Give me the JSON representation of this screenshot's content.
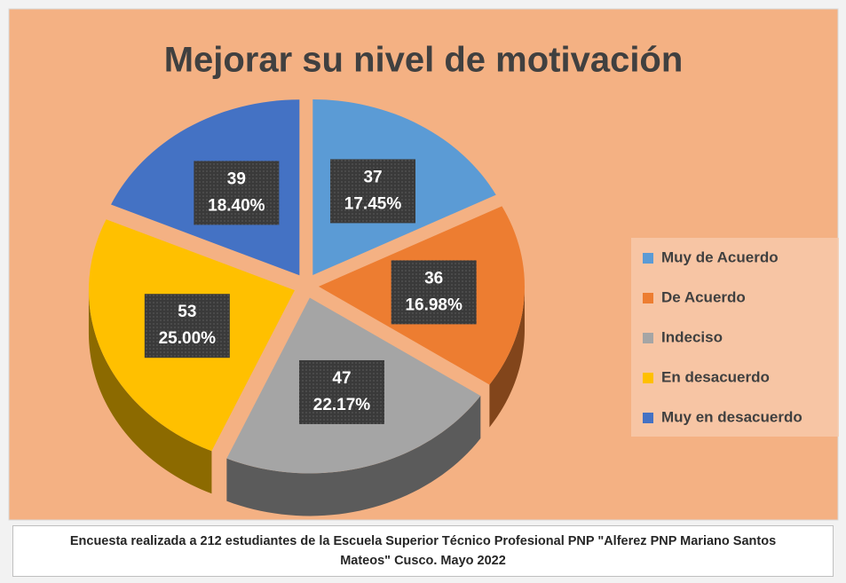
{
  "chart_data": {
    "type": "pie",
    "title": "Mejorar su nivel de motivación",
    "categories": [
      "Muy de Acuerdo",
      "De Acuerdo",
      "Indeciso",
      "En desacuerdo",
      "Muy en desacuerdo"
    ],
    "values": [
      37,
      36,
      47,
      53,
      39
    ],
    "percent_labels": [
      "17.45%",
      "16.98%",
      "22.17%",
      "25.00%",
      "18.40%"
    ],
    "colors": [
      "#5B9BD5",
      "#ED7D31",
      "#A5A5A5",
      "#FFC000",
      "#4472C4"
    ],
    "legend": "right",
    "note": "Encuesta realizada a 212 estudiantes  de la Escuela Superior Técnico Profesional PNP \"Alferez PNP Mariano Santos Mateos\" Cusco. Mayo 2022"
  }
}
